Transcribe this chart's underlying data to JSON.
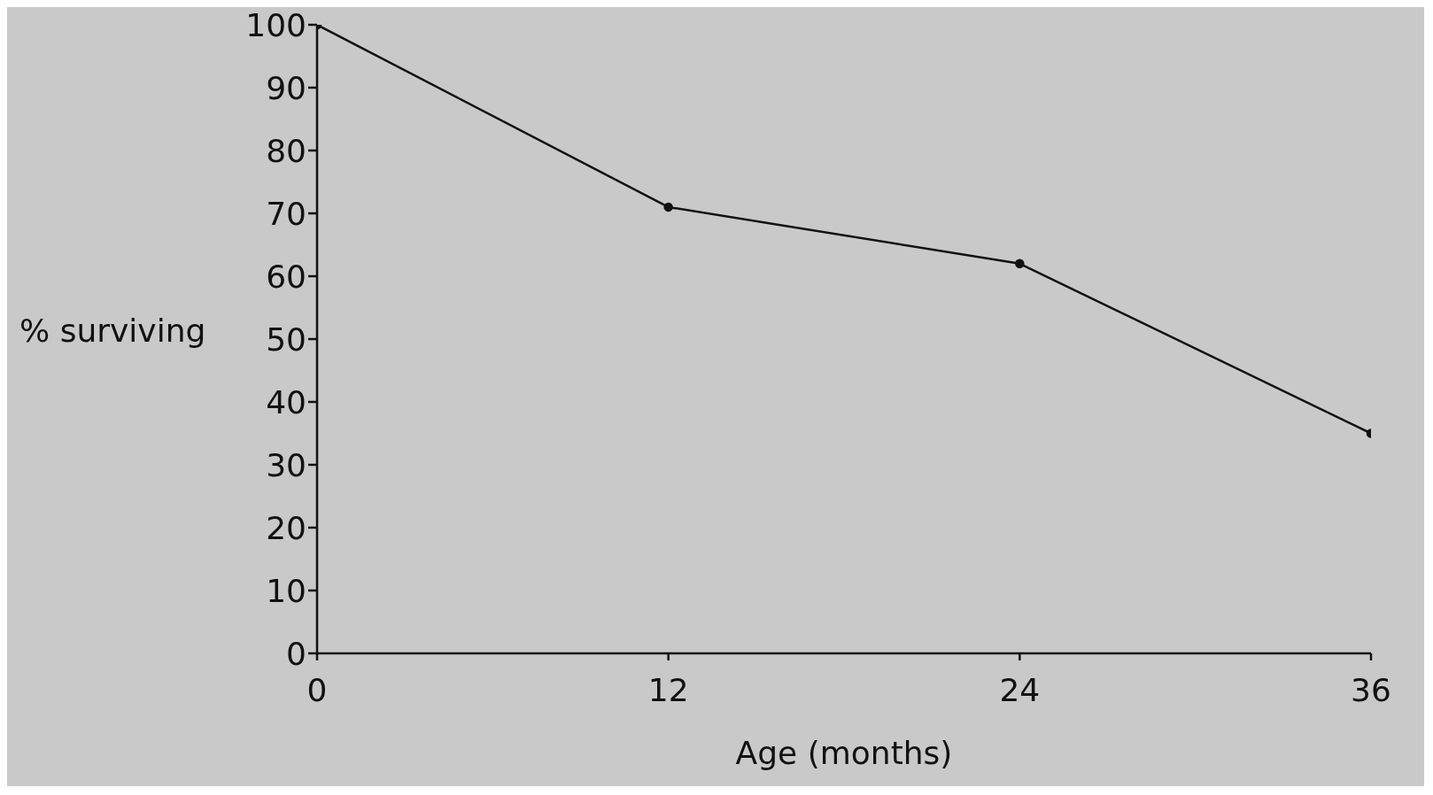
{
  "chart_data": {
    "type": "line",
    "xlabel": "Age (months)",
    "ylabel": "% surviving",
    "x": [
      0,
      12,
      24,
      36
    ],
    "series": [
      {
        "color": "#111111",
        "values": [
          100,
          71,
          62,
          35
        ]
      }
    ],
    "xlim": [
      0,
      36
    ],
    "xticks": [
      0,
      12,
      24,
      36
    ],
    "ylim": [
      0,
      100
    ],
    "yticks": [
      0,
      10,
      20,
      30,
      40,
      50,
      60,
      70,
      80,
      90,
      100
    ],
    "grid": false,
    "legend": false,
    "marker": "circle",
    "line_style": "solid"
  }
}
